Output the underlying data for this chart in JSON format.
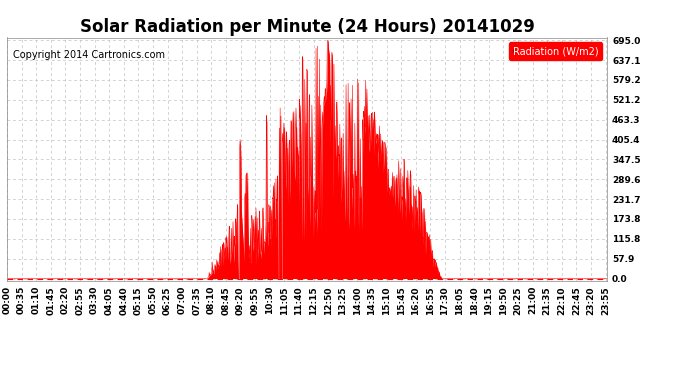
{
  "title": "Solar Radiation per Minute (24 Hours) 20141029",
  "copyright_text": "Copyright 2014 Cartronics.com",
  "legend_label": "Radiation (W/m2)",
  "yticks": [
    0.0,
    57.9,
    115.8,
    173.8,
    231.7,
    289.6,
    347.5,
    405.4,
    463.3,
    521.2,
    579.2,
    637.1,
    695.0
  ],
  "ymax": 695.0,
  "ymin": 0.0,
  "fill_color": "#ff0000",
  "line_color": "#ff0000",
  "bg_color": "#ffffff",
  "grid_color": "#c0c0c0",
  "zero_line_color": "#ff0000",
  "title_fontsize": 12,
  "copyright_fontsize": 7,
  "tick_fontsize": 6.5
}
